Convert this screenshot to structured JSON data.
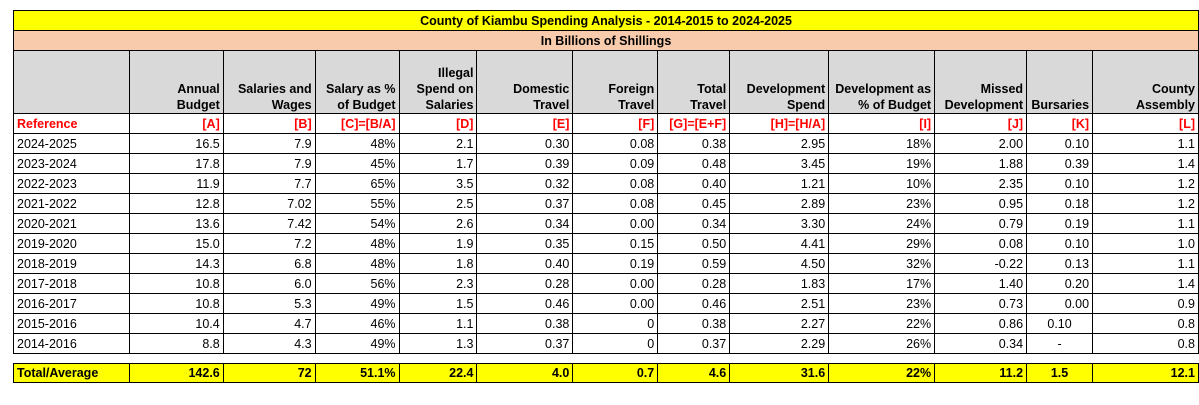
{
  "title": "County of Kiambu Spending Analysis - 2014-2015 to 2024-2025",
  "subtitle": "In Billions of Shillings",
  "headers": [
    "",
    "Annual Budget",
    "Salaries and Wages",
    "Salary as % of Budget",
    "Illegal Spend on Salaries",
    "Domestic Travel",
    "Foreign Travel",
    "Total Travel",
    "Development Spend",
    "Development as % of Budget",
    "Missed Development",
    "Bursaries",
    "County Assembly"
  ],
  "references": [
    "Reference",
    "[A]",
    "[B]",
    "[C]=[B/A]",
    "[D]",
    "[E]",
    "[F]",
    "[G]=[E+F]",
    "[H]=[H/A]",
    "[I]",
    "[J]",
    "[K]",
    "[L]"
  ],
  "rows": [
    [
      "2024-2025",
      "16.5",
      "7.9",
      "48%",
      "2.1",
      "0.30",
      "0.08",
      "0.38",
      "2.95",
      "18%",
      "2.00",
      "0.10",
      "1.1"
    ],
    [
      "2023-2024",
      "17.8",
      "7.9",
      "45%",
      "1.7",
      "0.39",
      "0.09",
      "0.48",
      "3.45",
      "19%",
      "1.88",
      "0.39",
      "1.4"
    ],
    [
      "2022-2023",
      "11.9",
      "7.7",
      "65%",
      "3.5",
      "0.32",
      "0.08",
      "0.40",
      "1.21",
      "10%",
      "2.35",
      "0.10",
      "1.2"
    ],
    [
      "2021-2022",
      "12.8",
      "7.02",
      "55%",
      "2.5",
      "0.37",
      "0.08",
      "0.45",
      "2.89",
      "23%",
      "0.95",
      "0.18",
      "1.2"
    ],
    [
      "2020-2021",
      "13.6",
      "7.42",
      "54%",
      "2.6",
      "0.34",
      "0.00",
      "0.34",
      "3.30",
      "24%",
      "0.79",
      "0.19",
      "1.1"
    ],
    [
      "2019-2020",
      "15.0",
      "7.2",
      "48%",
      "1.9",
      "0.35",
      "0.15",
      "0.50",
      "4.41",
      "29%",
      "0.08",
      "0.10",
      "1.0"
    ],
    [
      "2018-2019",
      "14.3",
      "6.8",
      "48%",
      "1.8",
      "0.40",
      "0.19",
      "0.59",
      "4.50",
      "32%",
      "-0.22",
      "0.13",
      "1.1"
    ],
    [
      "2017-2018",
      "10.8",
      "6.0",
      "56%",
      "2.3",
      "0.28",
      "0.00",
      "0.28",
      "1.83",
      "17%",
      "1.40",
      "0.20",
      "1.4"
    ],
    [
      "2016-2017",
      "10.8",
      "5.3",
      "49%",
      "1.5",
      "0.46",
      "0.00",
      "0.46",
      "2.51",
      "23%",
      "0.73",
      "0.00",
      "0.9"
    ],
    [
      "2015-2016",
      "10.4",
      "4.7",
      "46%",
      "1.1",
      "0.38",
      "0",
      "0.38",
      "2.27",
      "22%",
      "0.86",
      "0.10",
      "0.8"
    ],
    [
      "2014-2016",
      "8.8",
      "4.3",
      "49%",
      "1.3",
      "0.37",
      "0",
      "0.37",
      "2.29",
      "26%",
      "0.34",
      "-",
      "0.8"
    ]
  ],
  "total": [
    "Total/Average",
    "142.6",
    "72",
    "51.1%",
    "22.4",
    "4.0",
    "0.7",
    "4.6",
    "31.6",
    "22%",
    "11.2",
    "1.5",
    "12.1"
  ],
  "colors": {
    "title_bg": "#ffff00",
    "subtitle_bg": "#f8cbad",
    "header_bg": "#d9d9d9",
    "reference_text": "#ff0000",
    "total_bg": "#ffff00"
  }
}
